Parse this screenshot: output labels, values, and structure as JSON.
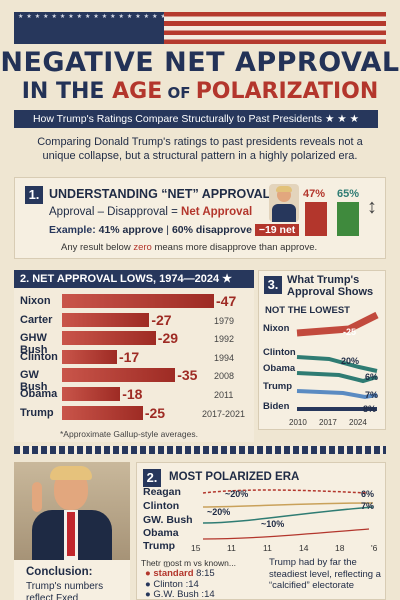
{
  "header": {
    "title_line1": "NEGATIVE NET APPROVAL",
    "title_line2_a": "IN THE ",
    "title_line2_b": "AGE",
    "title_line2_c": " OF ",
    "title_line2_d": "POLARIZATION",
    "ribbon": "How Trump's Ratings Compare Structurally to Past Presidents ★ ★ ★",
    "intro": "Comparing Donald Trump's ratings to past presidents reveals not a unique collapse, but a structural pattern in a highly polarized era."
  },
  "section1": {
    "number": "1.",
    "title": "UNDERSTANDING “NET” APPROVAL",
    "formula_a": "Approval – Disapproval =",
    "formula_b": "Net Approval",
    "example_label": "Example:",
    "example_a": "41% approve",
    "example_b": "60% disapprove",
    "example_c": "−19 net",
    "note_a": "Any result below ",
    "note_b": "zero",
    "note_c": " means more disapprove than approve.",
    "pct_a": "47%",
    "pct_b": "65%"
  },
  "section2": {
    "title": "2. NET APPROVAL LOWS, 1974—2024 ★",
    "footnote": "*Approximate Gallup-style averages."
  },
  "chart_data": [
    {
      "type": "bar",
      "title": "2. NET APPROVAL LOWS, 1974—2024",
      "categories": [
        "Nixon",
        "Carter",
        "GHW Bush",
        "Clinton",
        "GW Bush",
        "Obama",
        "Trump"
      ],
      "values": [
        -47,
        -27,
        -29,
        -17,
        -35,
        -18,
        -25
      ],
      "value_labels": [
        "-47",
        "-27",
        "-29",
        "-17",
        "-35",
        "-18",
        "-25"
      ],
      "years": [
        "",
        "1979",
        "1992",
        "1994",
        "2008",
        "2011",
        "2017-2021"
      ]
    },
    {
      "type": "line",
      "title": "What Trump's Approval Shows",
      "x": [
        "2010",
        "2017",
        "2024"
      ],
      "series": [
        {
          "name": "Nixon",
          "label": "-25",
          "color": "#c24a3d"
        },
        {
          "name": "Clinton",
          "label": "20%",
          "color": "#2f7c73"
        },
        {
          "name": "Obama",
          "label": "6%",
          "color": "#2f7c73"
        },
        {
          "name": "Trump",
          "label": "7%",
          "color": "#5a8bc2"
        },
        {
          "name": "Biden",
          "label": "8%",
          "color": "#27375c"
        }
      ],
      "banner": "NOT THE LOWEST"
    },
    {
      "type": "line",
      "title": "MOST POLARIZED ERA",
      "x": [
        "15",
        "11",
        "11",
        "14",
        "18",
        "'6"
      ],
      "series": [
        {
          "name": "Reagan",
          "label": "~20%"
        },
        {
          "name": "Clinton",
          "label": "~20%"
        },
        {
          "name": "GW. Bush",
          "label": "~10%"
        },
        {
          "name": "Obama",
          "label": "6%"
        },
        {
          "name": "Trump",
          "label": "7%"
        }
      ]
    }
  ],
  "section3": {
    "number": "3.",
    "title_a": "What Trump's",
    "title_b": "Approval Shows"
  },
  "section4": {
    "number": "2.",
    "title": "MOST POLARIZED ERA",
    "subhead": "Thetr m̲ost m vs known...",
    "rows": [
      {
        "name": "standard",
        "val": "8:15"
      },
      {
        "name": "Clinton",
        "val": ":14"
      },
      {
        "name": "G.W. Bush",
        "val": ":14"
      }
    ],
    "side_note": "Trump had by far the steadiest level, reflecting a “calcified” electorate"
  },
  "conclusion": {
    "title": "Conclusion:",
    "text": "Trump's numbers reflect Fxed"
  },
  "colors": {
    "navy": "#27375c",
    "red": "#b3362c",
    "cream": "#efe6d2",
    "teal": "#2f7c73"
  }
}
